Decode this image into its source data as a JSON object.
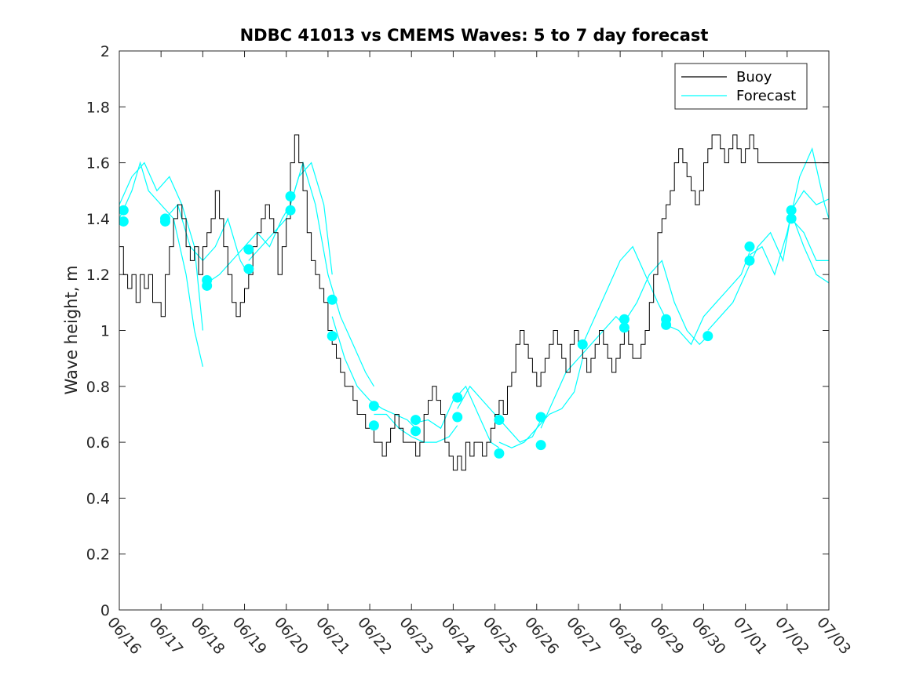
{
  "chart_data": {
    "type": "line",
    "title": "NDBC 41013 vs CMEMS Waves: 5 to 7 day forecast",
    "xlabel": "",
    "ylabel": "Wave height, m",
    "xlim": [
      "06/16",
      "07/03"
    ],
    "ylim": [
      0,
      2
    ],
    "y_ticks": [
      "0",
      "0.2",
      "0.4",
      "0.6",
      "0.8",
      "1",
      "1.2",
      "1.4",
      "1.6",
      "1.8",
      "2"
    ],
    "x_tick_labels": [
      "06/16",
      "06/17",
      "06/18",
      "06/19",
      "06/20",
      "06/21",
      "06/22",
      "06/23",
      "06/24",
      "06/25",
      "06/26",
      "06/27",
      "06/28",
      "06/29",
      "06/30",
      "07/01",
      "07/02",
      "07/03"
    ],
    "grid": false,
    "legend": {
      "position": "top-right",
      "entries": [
        {
          "label": "Buoy",
          "color": "#000000"
        },
        {
          "label": "Forecast",
          "color": "#00FFFF"
        }
      ]
    },
    "series": [
      {
        "name": "Buoy",
        "color": "#000000",
        "x_day_offset": [
          0.0,
          0.1,
          0.2,
          0.3,
          0.4,
          0.5,
          0.6,
          0.7,
          0.8,
          0.9,
          1.0,
          1.1,
          1.2,
          1.3,
          1.4,
          1.5,
          1.6,
          1.7,
          1.8,
          1.9,
          2.0,
          2.1,
          2.2,
          2.3,
          2.4,
          2.5,
          2.6,
          2.7,
          2.8,
          2.9,
          3.0,
          3.1,
          3.2,
          3.3,
          3.4,
          3.5,
          3.6,
          3.7,
          3.8,
          3.9,
          4.0,
          4.1,
          4.2,
          4.3,
          4.4,
          4.5,
          4.6,
          4.7,
          4.8,
          4.9,
          5.0,
          5.1,
          5.2,
          5.3,
          5.4,
          5.5,
          5.6,
          5.7,
          5.8,
          5.9,
          6.0,
          6.1,
          6.2,
          6.3,
          6.4,
          6.5,
          6.6,
          6.7,
          6.8,
          6.9,
          7.0,
          7.1,
          7.2,
          7.3,
          7.4,
          7.5,
          7.6,
          7.7,
          7.8,
          7.9,
          8.0,
          8.1,
          8.2,
          8.3,
          8.4,
          8.5,
          8.6,
          8.7,
          8.8,
          8.9,
          9.0,
          9.1,
          9.2,
          9.3,
          9.4,
          9.5,
          9.6,
          9.7,
          9.8,
          9.9,
          10.0,
          10.1,
          10.2,
          10.3,
          10.4,
          10.5,
          10.6,
          10.7,
          10.8,
          10.9,
          11.0,
          11.1,
          11.2,
          11.3,
          11.4,
          11.5,
          11.6,
          11.7,
          11.8,
          11.9,
          12.0,
          12.1,
          12.2,
          12.3,
          12.4,
          12.5,
          12.6,
          12.7,
          12.8,
          12.9,
          13.0,
          13.1,
          13.2,
          13.3,
          13.4,
          13.5,
          13.6,
          13.7,
          13.8,
          13.9,
          14.0,
          14.1,
          14.2,
          14.3,
          14.4,
          14.5,
          14.6,
          14.7,
          14.8,
          14.9,
          15.0,
          15.1,
          15.2,
          15.3,
          15.4,
          15.5,
          15.6,
          15.7,
          15.8,
          15.9,
          16.0,
          16.1,
          16.2,
          16.3,
          16.4,
          16.5,
          16.6,
          16.7,
          16.8,
          16.9,
          17.0
        ],
        "values": [
          1.3,
          1.2,
          1.15,
          1.2,
          1.1,
          1.2,
          1.15,
          1.2,
          1.1,
          1.1,
          1.05,
          1.2,
          1.3,
          1.4,
          1.45,
          1.4,
          1.3,
          1.25,
          1.3,
          1.2,
          1.3,
          1.35,
          1.4,
          1.5,
          1.4,
          1.3,
          1.2,
          1.1,
          1.05,
          1.1,
          1.15,
          1.2,
          1.3,
          1.35,
          1.4,
          1.45,
          1.4,
          1.35,
          1.2,
          1.3,
          1.4,
          1.6,
          1.7,
          1.6,
          1.5,
          1.35,
          1.25,
          1.2,
          1.15,
          1.1,
          1.0,
          0.95,
          0.9,
          0.85,
          0.8,
          0.8,
          0.75,
          0.7,
          0.7,
          0.65,
          0.65,
          0.6,
          0.6,
          0.55,
          0.6,
          0.65,
          0.7,
          0.65,
          0.6,
          0.6,
          0.6,
          0.55,
          0.6,
          0.7,
          0.75,
          0.8,
          0.75,
          0.7,
          0.6,
          0.55,
          0.5,
          0.55,
          0.5,
          0.6,
          0.55,
          0.6,
          0.6,
          0.55,
          0.6,
          0.65,
          0.7,
          0.75,
          0.7,
          0.8,
          0.85,
          0.95,
          1.0,
          0.95,
          0.9,
          0.85,
          0.8,
          0.85,
          0.9,
          0.95,
          1.0,
          0.95,
          0.9,
          0.85,
          0.95,
          1.0,
          0.95,
          0.9,
          0.85,
          0.9,
          0.95,
          1.0,
          0.95,
          0.9,
          0.85,
          0.9,
          0.95,
          1.0,
          0.95,
          0.9,
          0.9,
          0.95,
          1.0,
          1.1,
          1.2,
          1.35,
          1.4,
          1.45,
          1.5,
          1.6,
          1.65,
          1.6,
          1.55,
          1.5,
          1.45,
          1.5,
          1.6,
          1.65,
          1.7,
          1.7,
          1.65,
          1.6,
          1.65,
          1.7,
          1.65,
          1.6,
          1.65,
          1.7,
          1.65,
          1.6,
          1.6,
          1.6,
          1.6,
          1.6,
          1.6,
          1.6,
          1.6,
          1.6,
          1.6,
          1.6,
          1.6,
          1.6,
          1.6,
          1.6,
          1.6,
          1.6,
          1.6,
          1.6
        ]
      },
      {
        "name": "Forecast",
        "color": "#00FFFF",
        "lines": [
          {
            "x_day_offset": [
              0.0,
              0.3,
              0.5,
              0.7,
              1.0,
              1.3,
              1.6,
              1.8,
              2.0
            ],
            "values": [
              1.4,
              1.5,
              1.6,
              1.5,
              1.45,
              1.4,
              1.2,
              1.0,
              0.87
            ]
          },
          {
            "x_day_offset": [
              0.0,
              0.3,
              0.6,
              0.9,
              1.2,
              1.5,
              1.8,
              2.0
            ],
            "values": [
              1.45,
              1.55,
              1.6,
              1.5,
              1.55,
              1.45,
              1.3,
              1.0
            ]
          },
          {
            "x_day_offset": [
              1.1,
              1.4,
              1.7,
              2.0,
              2.3,
              2.6,
              2.9,
              3.1
            ],
            "values": [
              1.4,
              1.45,
              1.3,
              1.25,
              1.3,
              1.4,
              1.25,
              1.2
            ]
          },
          {
            "x_day_offset": [
              2.1,
              2.4,
              2.7,
              3.0,
              3.3,
              3.6,
              3.9,
              4.1
            ],
            "values": [
              1.17,
              1.2,
              1.25,
              1.3,
              1.35,
              1.3,
              1.4,
              1.45
            ]
          },
          {
            "x_day_offset": [
              3.1,
              3.4,
              3.7,
              4.0,
              4.3,
              4.6,
              4.9,
              5.1
            ],
            "values": [
              1.25,
              1.3,
              1.35,
              1.4,
              1.55,
              1.6,
              1.45,
              1.2
            ]
          },
          {
            "x_day_offset": [
              4.1,
              4.4,
              4.7,
              5.0,
              5.3,
              5.6,
              5.9,
              6.1
            ],
            "values": [
              1.45,
              1.6,
              1.45,
              1.2,
              1.05,
              0.95,
              0.85,
              0.8
            ]
          },
          {
            "x_day_offset": [
              5.1,
              5.4,
              5.7,
              6.0,
              6.3,
              6.6,
              6.9,
              7.1
            ],
            "values": [
              1.05,
              0.9,
              0.8,
              0.75,
              0.72,
              0.7,
              0.68,
              0.65
            ]
          },
          {
            "x_day_offset": [
              6.1,
              6.4,
              6.7,
              7.0,
              7.3,
              7.6,
              7.9,
              8.1
            ],
            "values": [
              0.7,
              0.7,
              0.65,
              0.62,
              0.6,
              0.6,
              0.62,
              0.66
            ]
          },
          {
            "x_day_offset": [
              7.1,
              7.4,
              7.7,
              8.0,
              8.3,
              8.6,
              8.9,
              9.1
            ],
            "values": [
              0.67,
              0.68,
              0.65,
              0.75,
              0.8,
              0.7,
              0.6,
              0.58
            ]
          },
          {
            "x_day_offset": [
              8.1,
              8.4,
              8.7,
              9.0,
              9.3,
              9.6,
              9.9,
              10.1
            ],
            "values": [
              0.72,
              0.8,
              0.75,
              0.7,
              0.65,
              0.6,
              0.62,
              0.68
            ]
          },
          {
            "x_day_offset": [
              9.1,
              9.4,
              9.7,
              10.0,
              10.3,
              10.6,
              10.9,
              11.1
            ],
            "values": [
              0.6,
              0.58,
              0.6,
              0.65,
              0.7,
              0.72,
              0.78,
              0.9
            ]
          },
          {
            "x_day_offset": [
              10.1,
              10.4,
              10.7,
              11.0,
              11.3,
              11.6,
              11.9,
              12.1
            ],
            "values": [
              0.65,
              0.75,
              0.85,
              0.9,
              0.95,
              1.0,
              1.05,
              1.02
            ]
          },
          {
            "x_day_offset": [
              11.1,
              11.4,
              11.7,
              12.0,
              12.3,
              12.6,
              12.9,
              13.1
            ],
            "values": [
              0.95,
              1.05,
              1.15,
              1.25,
              1.3,
              1.2,
              1.1,
              1.04
            ]
          },
          {
            "x_day_offset": [
              12.1,
              12.4,
              12.7,
              13.0,
              13.3,
              13.6,
              13.9,
              14.1
            ],
            "values": [
              1.03,
              1.1,
              1.2,
              1.25,
              1.1,
              1.0,
              0.95,
              0.98
            ]
          },
          {
            "x_day_offset": [
              13.1,
              13.4,
              13.7,
              14.0,
              14.3,
              14.6,
              14.9,
              15.1
            ],
            "values": [
              1.02,
              1.0,
              0.95,
              1.05,
              1.1,
              1.15,
              1.2,
              1.28
            ]
          },
          {
            "x_day_offset": [
              14.1,
              14.4,
              14.7,
              15.0,
              15.3,
              15.6,
              15.9,
              16.1
            ],
            "values": [
              1.0,
              1.05,
              1.1,
              1.2,
              1.3,
              1.35,
              1.25,
              1.42
            ]
          },
          {
            "x_day_offset": [
              15.1,
              15.4,
              15.7,
              16.0,
              16.3,
              16.6,
              16.9,
              17.0
            ],
            "values": [
              1.27,
              1.3,
              1.2,
              1.35,
              1.55,
              1.65,
              1.45,
              1.4
            ]
          },
          {
            "x_day_offset": [
              16.1,
              16.4,
              16.7,
              17.0
            ],
            "values": [
              1.4,
              1.35,
              1.25,
              1.25
            ]
          },
          {
            "x_day_offset": [
              16.1,
              16.4,
              16.7,
              17.0
            ],
            "values": [
              1.43,
              1.5,
              1.45,
              1.47
            ]
          },
          {
            "x_day_offset": [
              16.1,
              16.4,
              16.7,
              17.0
            ],
            "values": [
              1.42,
              1.3,
              1.2,
              1.17
            ]
          }
        ],
        "markers": {
          "x_day_offset": [
            0.1,
            0.1,
            1.1,
            1.1,
            2.1,
            2.1,
            3.1,
            3.1,
            4.1,
            4.1,
            5.1,
            5.1,
            6.1,
            6.1,
            7.1,
            7.1,
            8.1,
            8.1,
            9.1,
            9.1,
            10.1,
            10.1,
            11.1,
            12.1,
            12.1,
            13.1,
            13.1,
            14.1,
            15.1,
            15.1,
            16.1,
            16.1
          ],
          "values": [
            1.43,
            1.39,
            1.4,
            1.39,
            1.18,
            1.16,
            1.29,
            1.22,
            1.48,
            1.43,
            1.11,
            0.98,
            0.73,
            0.66,
            0.68,
            0.64,
            0.76,
            0.69,
            0.68,
            0.56,
            0.69,
            0.59,
            0.95,
            1.04,
            1.01,
            1.04,
            1.02,
            0.98,
            1.3,
            1.25,
            1.43,
            1.4
          ]
        }
      }
    ]
  }
}
